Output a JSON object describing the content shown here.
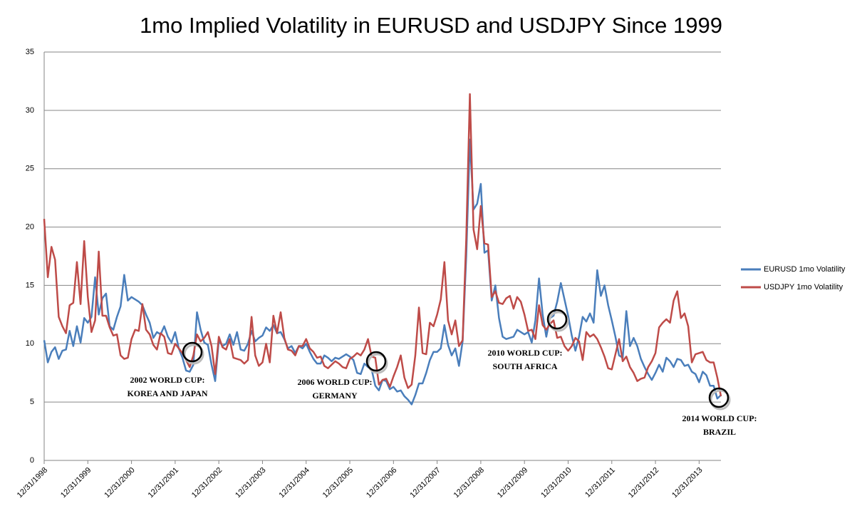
{
  "chart_data": {
    "type": "line",
    "title": "1mo Implied Volatility in EURUSD and USDJPY Since 1999",
    "categories": [
      "12/31/1998",
      null,
      null,
      null,
      null,
      null,
      null,
      null,
      null,
      null,
      null,
      null,
      "12/31/1999",
      null,
      null,
      null,
      null,
      null,
      null,
      null,
      null,
      null,
      null,
      null,
      "12/31/2000",
      null,
      null,
      null,
      null,
      null,
      null,
      null,
      null,
      null,
      null,
      null,
      "12/31/2001",
      null,
      null,
      null,
      null,
      null,
      null,
      null,
      null,
      null,
      null,
      null,
      "12/31/2002",
      null,
      null,
      null,
      null,
      null,
      null,
      null,
      null,
      null,
      null,
      null,
      "12/31/2003",
      null,
      null,
      null,
      null,
      null,
      null,
      null,
      null,
      null,
      null,
      null,
      "12/31/2004",
      null,
      null,
      null,
      null,
      null,
      null,
      null,
      null,
      null,
      null,
      null,
      "12/31/2005",
      null,
      null,
      null,
      null,
      null,
      null,
      null,
      null,
      null,
      null,
      null,
      "12/31/2006",
      null,
      null,
      null,
      null,
      null,
      null,
      null,
      null,
      null,
      null,
      null,
      "12/31/2007",
      null,
      null,
      null,
      null,
      null,
      null,
      null,
      null,
      null,
      null,
      null,
      "12/31/2008",
      null,
      null,
      null,
      null,
      null,
      null,
      null,
      null,
      null,
      null,
      null,
      "12/31/2009",
      null,
      null,
      null,
      null,
      null,
      null,
      null,
      null,
      null,
      null,
      null,
      "12/31/2010",
      null,
      null,
      null,
      null,
      null,
      null,
      null,
      null,
      null,
      null,
      null,
      "12/31/2011",
      null,
      null,
      null,
      null,
      null,
      null,
      null,
      null,
      null,
      null,
      null,
      "12/31/2012",
      null,
      null,
      null,
      null,
      null,
      null,
      null,
      null,
      null,
      null,
      null,
      "12/31/2013",
      null,
      null,
      null,
      null,
      null,
      null
    ],
    "series": [
      {
        "name": "EURUSD 1mo Volatility",
        "color": "#4a7ebb",
        "values": [
          10.3,
          8.4,
          9.3,
          9.7,
          8.7,
          9.4,
          9.5,
          11.1,
          9.8,
          11.5,
          10.1,
          12.2,
          11.8,
          12.3,
          15.7,
          12.5,
          13.9,
          14.3,
          11.5,
          11.2,
          12.3,
          13.2,
          15.9,
          13.7,
          14.0,
          13.8,
          13.6,
          13.3,
          12.5,
          11.8,
          10.5,
          11.0,
          10.8,
          11.5,
          10.6,
          10.1,
          11.0,
          9.6,
          8.8,
          7.7,
          7.6,
          8.2,
          12.7,
          11.2,
          10.1,
          9.9,
          8.2,
          6.8,
          10.3,
          9.8,
          10.0,
          10.8,
          9.9,
          11.0,
          9.5,
          9.4,
          10.0,
          11.1,
          10.2,
          10.5,
          10.7,
          11.4,
          11.1,
          11.6,
          10.9,
          11.0,
          10.4,
          9.6,
          9.8,
          9.2,
          9.8,
          9.6,
          10.0,
          9.3,
          8.7,
          8.3,
          8.3,
          9.0,
          8.8,
          8.5,
          8.8,
          8.7,
          8.9,
          9.1,
          8.9,
          8.6,
          7.5,
          7.4,
          8.3,
          8.0,
          7.8,
          6.4,
          6.0,
          6.9,
          6.8,
          6.1,
          6.3,
          5.9,
          6.0,
          5.5,
          5.2,
          4.8,
          5.6,
          6.6,
          6.6,
          7.5,
          8.6,
          9.3,
          9.3,
          9.6,
          11.6,
          9.9,
          9.0,
          9.6,
          8.1,
          10.2,
          17.5,
          27.5,
          21.5,
          22.0,
          23.7,
          17.8,
          18.0,
          13.7,
          15.0,
          12.2,
          10.6,
          10.4,
          10.5,
          10.6,
          11.2,
          11.0,
          10.8,
          11.0,
          10.1,
          12.0,
          15.6,
          12.5,
          10.6,
          12.2,
          12.4,
          13.6,
          15.2,
          13.8,
          12.4,
          10.7,
          9.4,
          10.6,
          12.3,
          11.9,
          12.6,
          11.8,
          16.3,
          14.1,
          15.0,
          13.3,
          12.0,
          10.6,
          9.0,
          8.8,
          12.8,
          9.8,
          10.5,
          9.8,
          8.7,
          8.0,
          7.4,
          6.9,
          7.5,
          8.2,
          7.6,
          8.8,
          8.5,
          8.0,
          8.7,
          8.6,
          8.1,
          8.2,
          7.6,
          7.4,
          6.7,
          7.6,
          7.3,
          6.4,
          6.4,
          5.3,
          5.6
        ]
      },
      {
        "name": "USDJPY 1mo Volatility",
        "color": "#be4b48",
        "values": [
          20.7,
          15.7,
          18.3,
          17.2,
          12.3,
          11.5,
          10.9,
          13.3,
          13.5,
          17.0,
          13.4,
          18.8,
          14.0,
          11.0,
          12.0,
          17.9,
          12.4,
          12.4,
          11.4,
          10.7,
          10.8,
          9.0,
          8.7,
          8.8,
          10.4,
          11.2,
          11.1,
          13.4,
          11.2,
          10.8,
          9.9,
          9.5,
          10.9,
          10.6,
          9.2,
          9.1,
          10.0,
          9.6,
          9.2,
          8.6,
          8.0,
          9.0,
          10.8,
          10.2,
          10.5,
          11.0,
          9.8,
          7.4,
          10.6,
          9.7,
          9.5,
          10.4,
          8.8,
          8.7,
          8.6,
          8.3,
          8.6,
          12.3,
          9.0,
          8.1,
          8.4,
          10.0,
          8.4,
          12.4,
          10.9,
          12.7,
          10.5,
          9.5,
          9.4,
          9.0,
          9.8,
          9.8,
          10.4,
          9.6,
          9.3,
          8.8,
          8.9,
          8.1,
          7.9,
          8.2,
          8.5,
          8.3,
          8.0,
          7.9,
          8.7,
          8.9,
          9.2,
          9.0,
          9.5,
          10.4,
          8.9,
          8.8,
          6.5,
          6.9,
          7.0,
          6.3,
          7.2,
          8.0,
          9.0,
          7.1,
          6.2,
          6.5,
          9.0,
          13.1,
          9.2,
          9.1,
          11.8,
          11.5,
          12.5,
          13.8,
          17.0,
          12.0,
          10.8,
          12.0,
          9.8,
          10.3,
          19.0,
          31.4,
          19.8,
          18.1,
          21.8,
          18.6,
          18.5,
          14.0,
          14.5,
          13.5,
          13.4,
          13.9,
          14.1,
          13.0,
          14.0,
          13.6,
          12.5,
          11.1,
          11.2,
          10.4,
          13.3,
          11.6,
          11.2,
          11.7,
          12.0,
          10.5,
          10.6,
          9.8,
          9.4,
          9.8,
          10.5,
          10.2,
          8.6,
          11.0,
          10.6,
          10.8,
          10.4,
          9.7,
          8.9,
          7.9,
          7.8,
          9.1,
          10.4,
          8.5,
          8.9,
          8.0,
          7.5,
          6.8,
          7.0,
          7.1,
          8.0,
          8.5,
          9.2,
          11.4,
          11.8,
          12.1,
          11.8,
          13.7,
          14.5,
          12.2,
          12.6,
          11.5,
          8.4,
          9.1,
          9.2,
          9.3,
          8.6,
          8.4,
          8.4,
          7.1,
          5.5
        ]
      }
    ],
    "ylim": [
      0,
      35
    ],
    "yticks": [
      0,
      5,
      10,
      15,
      20,
      25,
      30,
      35
    ],
    "grid": true,
    "legend": "right",
    "annotations": [
      {
        "lines": [
          "2002 WORLD CUP:",
          "KOREA AND JAPAN"
        ]
      },
      {
        "lines": [
          "2006 WORLD CUP:",
          "GERMANY"
        ]
      },
      {
        "lines": [
          "2010 WORLD CUP:",
          "SOUTH AFRICA"
        ]
      },
      {
        "lines": [
          "2014 WORLD CUP:",
          "BRAZIL"
        ]
      }
    ]
  }
}
